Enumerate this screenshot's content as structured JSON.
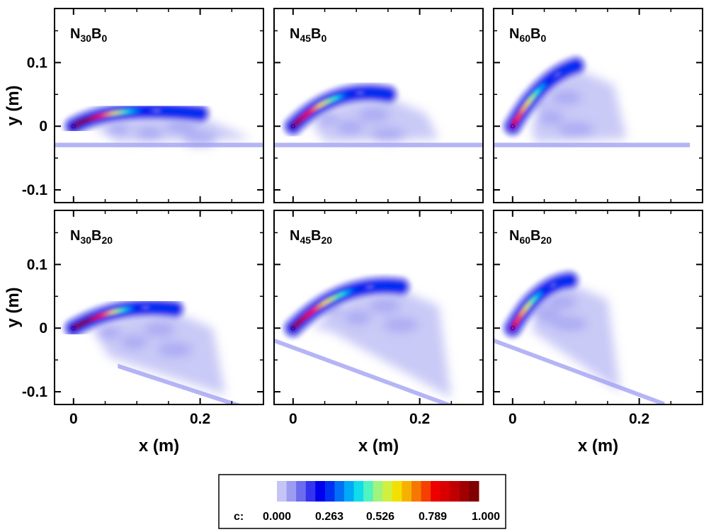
{
  "chart_data": {
    "type": "heatmap",
    "variable": "c",
    "colorbar": {
      "label": "c:",
      "ticks": [
        "0.000",
        "0.263",
        "0.526",
        "0.789",
        "1.000"
      ],
      "range": [
        0,
        1
      ],
      "levels": [
        "#c4c4f6",
        "#9c9cf2",
        "#6c6cee",
        "#3434ee",
        "#0000ee",
        "#0030f2",
        "#0070f6",
        "#00aaf6",
        "#10dcea",
        "#50f4be",
        "#a0f47c",
        "#d0f040",
        "#f4e000",
        "#f6b000",
        "#f67800",
        "#f44000",
        "#ee0000",
        "#d80000",
        "#c00000",
        "#a00000",
        "#800000"
      ]
    },
    "layout": {
      "rows": 2,
      "cols": 3
    },
    "x_axis": {
      "label": "x (m)",
      "ticks": [
        "0",
        "0.2"
      ],
      "tick_values": [
        0,
        0.2
      ],
      "range": [
        -0.03,
        0.3
      ]
    },
    "y_axis": {
      "label": "y (m)",
      "ticks": [
        "0.1",
        "0",
        "-0.1"
      ],
      "tick_values": [
        0.1,
        0,
        -0.1
      ],
      "range": [
        -0.12,
        0.185
      ]
    },
    "panels": [
      {
        "id": "N30B0",
        "label_main": "N",
        "label_sub1": "30",
        "label_mid": "B",
        "label_sub2": "0",
        "nozzle_angle": 30,
        "crossflow_angle": 0,
        "row": 0,
        "col": 0,
        "peak_x": 0.2,
        "peak_y": 0.02,
        "max_c": 1.0,
        "floor": {
          "type": "flat",
          "x0": -0.03,
          "x1": 0.3,
          "y0": -0.03,
          "y1": -0.03
        }
      },
      {
        "id": "N45B0",
        "label_main": "N",
        "label_sub1": "45",
        "label_mid": "B",
        "label_sub2": "0",
        "nozzle_angle": 45,
        "crossflow_angle": 0,
        "row": 0,
        "col": 1,
        "peak_x": 0.15,
        "peak_y": 0.05,
        "max_c": 0.75,
        "floor": {
          "type": "flat",
          "x0": -0.03,
          "x1": 0.3,
          "y0": -0.03,
          "y1": -0.03
        }
      },
      {
        "id": "N60B0",
        "label_main": "N",
        "label_sub1": "60",
        "label_mid": "B",
        "label_sub2": "0",
        "nozzle_angle": 60,
        "crossflow_angle": 0,
        "row": 0,
        "col": 2,
        "peak_x": 0.1,
        "peak_y": 0.095,
        "max_c": 0.6,
        "floor": {
          "type": "flat",
          "x0": -0.03,
          "x1": 0.28,
          "y0": -0.03,
          "y1": -0.03
        }
      },
      {
        "id": "N30B20",
        "label_main": "N",
        "label_sub1": "30",
        "label_mid": "B",
        "label_sub2": "20",
        "nozzle_angle": 30,
        "crossflow_angle": 20,
        "row": 1,
        "col": 0,
        "peak_x": 0.16,
        "peak_y": 0.03,
        "max_c": 1.0,
        "floor": {
          "type": "sloped",
          "x0": 0.07,
          "x1": 0.27,
          "y0": -0.06,
          "y1": -0.125
        }
      },
      {
        "id": "N45B20",
        "label_main": "N",
        "label_sub1": "45",
        "label_mid": "B",
        "label_sub2": "20",
        "nozzle_angle": 45,
        "crossflow_angle": 20,
        "row": 1,
        "col": 1,
        "peak_x": 0.17,
        "peak_y": 0.065,
        "max_c": 0.75,
        "floor": {
          "type": "sloped",
          "x0": -0.03,
          "x1": 0.27,
          "y0": -0.02,
          "y1": -0.13
        }
      },
      {
        "id": "N60B20",
        "label_main": "N",
        "label_sub1": "60",
        "label_mid": "B",
        "label_sub2": "20",
        "nozzle_angle": 60,
        "crossflow_angle": 20,
        "row": 1,
        "col": 2,
        "peak_x": 0.09,
        "peak_y": 0.075,
        "max_c": 0.6,
        "floor": {
          "type": "sloped",
          "x0": -0.03,
          "x1": 0.24,
          "y0": -0.02,
          "y1": -0.12
        }
      }
    ]
  }
}
